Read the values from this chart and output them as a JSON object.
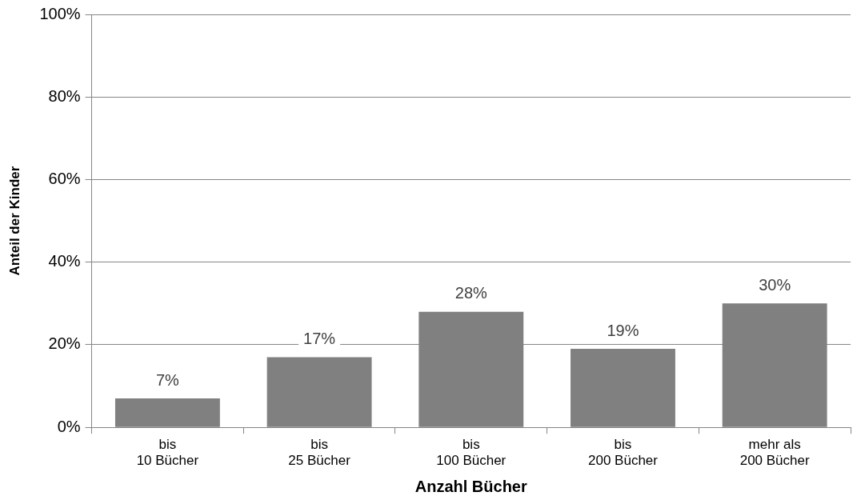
{
  "chart_data": {
    "type": "bar",
    "xlabel": "Anzahl Bücher",
    "ylabel": "Anteil der Kinder",
    "categories": [
      "bis\n10 Bücher",
      "bis\n25 Bücher",
      "bis\n100 Bücher",
      "bis\n200 Bücher",
      "mehr als\n200 Bücher"
    ],
    "values": [
      7,
      17,
      28,
      19,
      30
    ],
    "value_labels": [
      "7%",
      "17%",
      "28%",
      "19%",
      "30%"
    ],
    "color": "#808080",
    "ylim": [
      0,
      100
    ],
    "yticks": [
      {
        "value": 0,
        "label": "0%"
      },
      {
        "value": 20,
        "label": "20%"
      },
      {
        "value": 40,
        "label": "40%"
      },
      {
        "value": 60,
        "label": "60%"
      },
      {
        "value": 80,
        "label": "80%"
      },
      {
        "value": 100,
        "label": "100%"
      }
    ],
    "grid": "y",
    "legend": false
  }
}
